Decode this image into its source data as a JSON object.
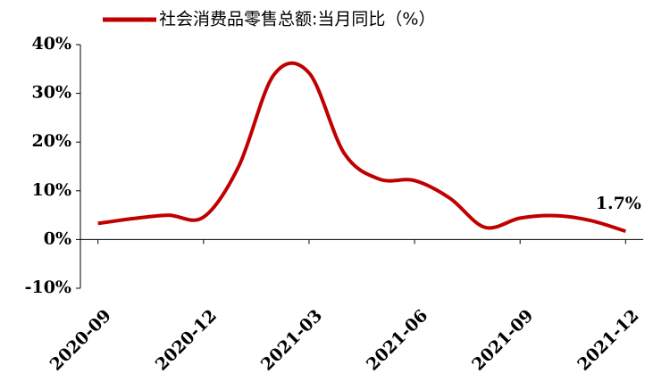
{
  "chart_data": {
    "type": "line",
    "categories": [
      "2020-09",
      null,
      null,
      "2020-12",
      null,
      null,
      "2021-03",
      null,
      null,
      "2021-06",
      null,
      null,
      "2021-09",
      null,
      null,
      "2021-12"
    ],
    "series": [
      {
        "name": "社会消费品零售总额:当月同比（%）",
        "color": "#c00000",
        "values": [
          3.3,
          4.3,
          5.0,
          4.6,
          15,
          33.8,
          34.2,
          17.7,
          12.4,
          12.1,
          8.5,
          2.5,
          4.4,
          4.9,
          3.9,
          1.7
        ],
        "value_labels": [
          null,
          null,
          null,
          null,
          null,
          null,
          null,
          null,
          null,
          null,
          null,
          null,
          null,
          null,
          null,
          "1.7%"
        ]
      }
    ],
    "ylim": [
      -10,
      40
    ],
    "yticks": [
      {
        "value": -10,
        "label": "-10%"
      },
      {
        "value": 0,
        "label": "0%"
      },
      {
        "value": 10,
        "label": "10%"
      },
      {
        "value": 20,
        "label": "20%"
      },
      {
        "value": 30,
        "label": "30%"
      },
      {
        "value": 40,
        "label": "40%"
      }
    ]
  }
}
